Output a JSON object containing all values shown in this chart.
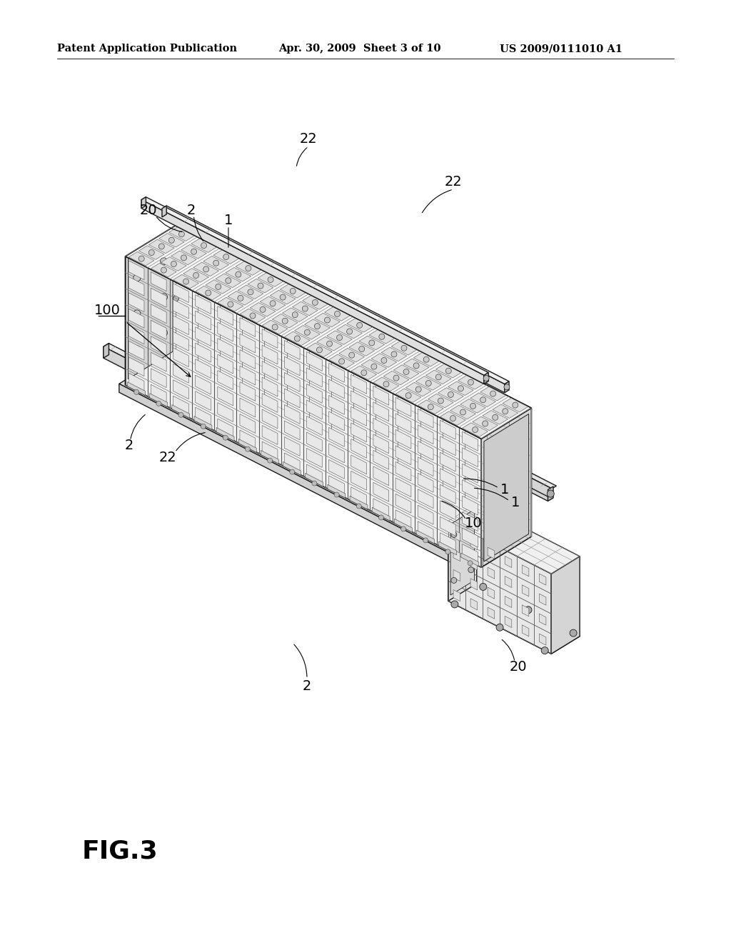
{
  "background_color": "#ffffff",
  "header_left": "Patent Application Publication",
  "header_center": "Apr. 30, 2009  Sheet 3 of 10",
  "header_right": "US 2009/0111010 A1",
  "header_fontsize": 10.5,
  "fig_label": "FIG.3",
  "fig_label_fontsize": 26,
  "line_color": "#1a1a1a",
  "line_width": 1.0
}
